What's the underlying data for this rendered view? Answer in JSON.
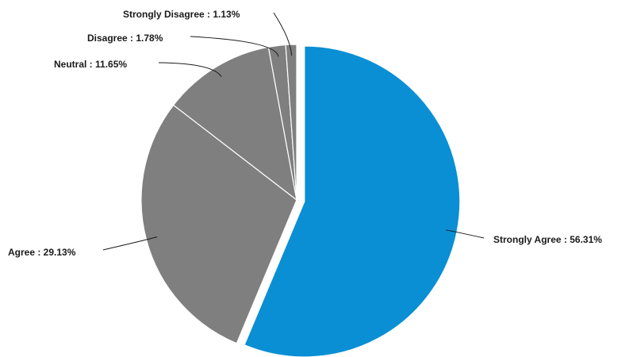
{
  "chart_data": {
    "type": "pie",
    "title": "",
    "slices": [
      {
        "category": "Strongly Agree",
        "value": 56.31,
        "label": "Strongly Agree : 56.31%",
        "color": "#0a8fd4",
        "exploded": true
      },
      {
        "category": "Agree",
        "value": 29.13,
        "label": "Agree : 29.13%",
        "color": "#7f7f7f",
        "exploded": false
      },
      {
        "category": "Neutral",
        "value": 11.65,
        "label": "Neutral : 11.65%",
        "color": "#7f7f7f",
        "exploded": false
      },
      {
        "category": "Disagree",
        "value": 1.78,
        "label": "Disagree : 1.78%",
        "color": "#7f7f7f",
        "exploded": false
      },
      {
        "category": "Strongly Disagree",
        "value": 1.13,
        "label": "Strongly Disagree : 1.13%",
        "color": "#7f7f7f",
        "exploded": false
      }
    ],
    "start_angle_deg": 0,
    "direction": "clockwise",
    "legend": "none",
    "data_labels": "outside-with-leader-lines"
  }
}
